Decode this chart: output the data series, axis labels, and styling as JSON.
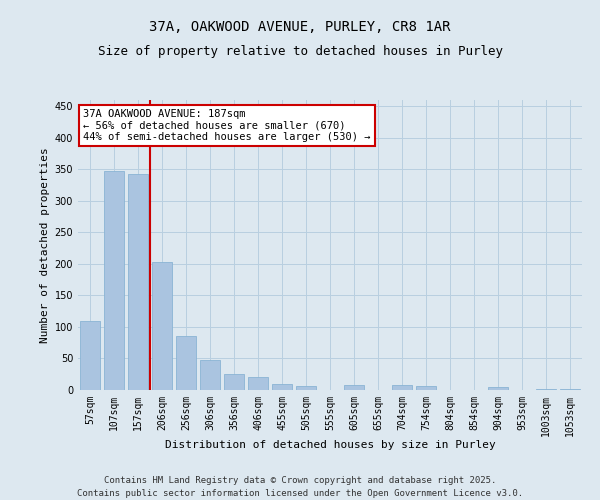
{
  "title_line1": "37A, OAKWOOD AVENUE, PURLEY, CR8 1AR",
  "title_line2": "Size of property relative to detached houses in Purley",
  "xlabel": "Distribution of detached houses by size in Purley",
  "ylabel": "Number of detached properties",
  "categories": [
    "57sqm",
    "107sqm",
    "157sqm",
    "206sqm",
    "256sqm",
    "306sqm",
    "356sqm",
    "406sqm",
    "455sqm",
    "505sqm",
    "555sqm",
    "605sqm",
    "655sqm",
    "704sqm",
    "754sqm",
    "804sqm",
    "854sqm",
    "904sqm",
    "953sqm",
    "1003sqm",
    "1053sqm"
  ],
  "values": [
    110,
    348,
    343,
    203,
    85,
    47,
    25,
    21,
    10,
    7,
    0,
    8,
    0,
    8,
    7,
    0,
    0,
    4,
    0,
    2,
    2
  ],
  "bar_color": "#aac4e0",
  "bar_edge_color": "#8ab4d4",
  "vline_x": 2.5,
  "vline_color": "#cc0000",
  "annotation_text": "37A OAKWOOD AVENUE: 187sqm\n← 56% of detached houses are smaller (670)\n44% of semi-detached houses are larger (530) →",
  "annotation_box_color": "white",
  "annotation_box_edge": "#cc0000",
  "ylim": [
    0,
    460
  ],
  "yticks": [
    0,
    50,
    100,
    150,
    200,
    250,
    300,
    350,
    400,
    450
  ],
  "grid_color": "#b8cfe0",
  "background_color": "#dde8f0",
  "footnote": "Contains HM Land Registry data © Crown copyright and database right 2025.\nContains public sector information licensed under the Open Government Licence v3.0.",
  "title_fontsize": 10,
  "subtitle_fontsize": 9,
  "xlabel_fontsize": 8,
  "ylabel_fontsize": 8,
  "tick_fontsize": 7,
  "annotation_fontsize": 7.5,
  "footnote_fontsize": 6.5
}
